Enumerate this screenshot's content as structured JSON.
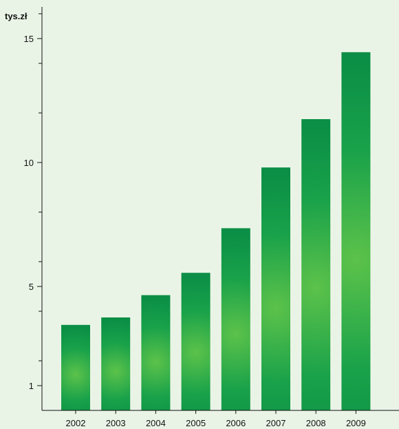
{
  "chart_data": {
    "type": "bar",
    "title": "",
    "xlabel": "",
    "ylabel": "tys.zł",
    "categories": [
      "2002",
      "2003",
      "2004",
      "2005",
      "2006",
      "2007",
      "2008",
      "2009"
    ],
    "values": [
      3.45,
      3.75,
      4.65,
      5.55,
      7.35,
      9.8,
      11.75,
      14.45
    ],
    "y_ticks": [
      1,
      5,
      10,
      15
    ],
    "y_tick_labels": [
      "1",
      "5",
      "10",
      "15"
    ],
    "ylim": [
      0,
      16.1
    ],
    "grid": false,
    "bar_color": "#0b8f46",
    "bar_highlight_color": "#5cc24a"
  }
}
